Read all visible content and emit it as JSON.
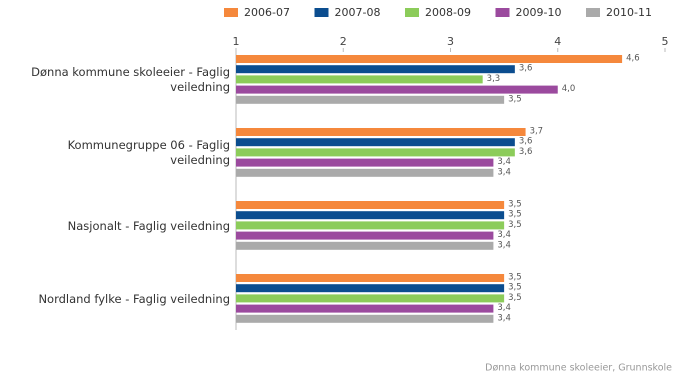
{
  "chart_data": {
    "type": "bar",
    "orientation": "horizontal",
    "categories": [
      "Dønna kommune skoleeier - Faglig veiledning",
      "Kommunegruppe 06 - Faglig veiledning",
      "Nasjonalt - Faglig veiledning",
      "Nordland fylke - Faglig veiledning"
    ],
    "series": [
      {
        "name": "2006-07",
        "color": "#f5883c",
        "values": [
          4.6,
          3.7,
          3.5,
          3.5
        ],
        "value_labels": [
          "4,6",
          "3,7",
          "3,5",
          "3,5"
        ]
      },
      {
        "name": "2007-08",
        "color": "#0b4d8f",
        "values": [
          3.6,
          3.6,
          3.5,
          3.5
        ],
        "value_labels": [
          "3,6",
          "3,6",
          "3,5",
          "3,5"
        ]
      },
      {
        "name": "2008-09",
        "color": "#8ccc5a",
        "values": [
          3.3,
          3.6,
          3.5,
          3.5
        ],
        "value_labels": [
          "3,3",
          "3,6",
          "3,5",
          "3,5"
        ]
      },
      {
        "name": "2009-10",
        "color": "#9b4a9e",
        "values": [
          4.0,
          3.4,
          3.4,
          3.4
        ],
        "value_labels": [
          "4,0",
          "3,4",
          "3,4",
          "3,4"
        ]
      },
      {
        "name": "2010-11",
        "color": "#aaaaaa",
        "values": [
          3.5,
          3.4,
          3.4,
          3.4
        ],
        "value_labels": [
          "3,5",
          "3,4",
          "3,4",
          "3,4"
        ]
      }
    ],
    "xlim": [
      1,
      5
    ],
    "xticks": [
      1,
      2,
      3,
      4,
      5
    ],
    "legend": "top",
    "footnote": "Dønna kommune skoleeier, Grunnskole"
  }
}
